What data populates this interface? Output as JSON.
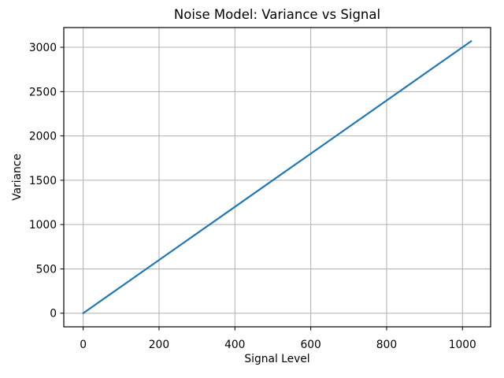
{
  "chart_data": {
    "type": "line",
    "title": "Noise Model: Variance vs Signal",
    "xlabel": "Signal Level",
    "ylabel": "Variance",
    "x": [
      0,
      128,
      256,
      384,
      512,
      640,
      768,
      896,
      1023
    ],
    "y": [
      0,
      384,
      768,
      1152,
      1536,
      1920,
      2304,
      2688,
      3069
    ],
    "xticks": [
      0,
      200,
      400,
      600,
      800,
      1000
    ],
    "yticks": [
      0,
      500,
      1000,
      1500,
      2000,
      2500,
      3000
    ],
    "xlim": [
      -51.15,
      1074.15
    ],
    "ylim": [
      -153.45,
      3222.45
    ],
    "grid": true,
    "legend_position": "none",
    "line_color": "#1f77b4",
    "grid_color": "#b0b0b0",
    "axis_color": "#000000",
    "background_color": "#ffffff"
  }
}
